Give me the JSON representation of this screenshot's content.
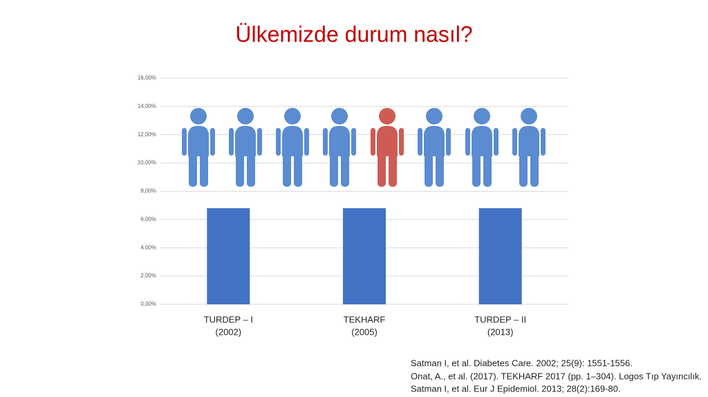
{
  "title": "Ülkemizde durum nasıl?",
  "chart_data": {
    "type": "bar",
    "categories": [
      "TURDEP – I",
      "TEKHARF",
      "TURDEP – II"
    ],
    "category_years": [
      "(2002)",
      "(2005)",
      "(2013)"
    ],
    "values": [
      6.8,
      6.8,
      6.8
    ],
    "color": "#4472c4",
    "ylim": [
      0,
      16
    ],
    "yticks": [
      {
        "value": 0,
        "label": "0,00%"
      },
      {
        "value": 2,
        "label": "2,00%"
      },
      {
        "value": 4,
        "label": "4,00%"
      },
      {
        "value": 6,
        "label": "6,00%"
      },
      {
        "value": 8,
        "label": "8,00%"
      },
      {
        "value": 10,
        "label": "10,00%"
      },
      {
        "value": 12,
        "label": "12,00%"
      },
      {
        "value": 14,
        "label": "14,00%"
      },
      {
        "value": 16,
        "label": "16,00%"
      }
    ],
    "grid": true
  },
  "references": [
    "Satman I, et al. Diabetes Care. 2002; 25(9): 1551-1556.",
    "Onat, A., et al. (2017). TEKHARF 2017 (pp. 1–304). Logos Tıp Yayıncılık.",
    "Satman I, et al. Eur J Epidemiol. 2013; 28(2):169-80."
  ]
}
